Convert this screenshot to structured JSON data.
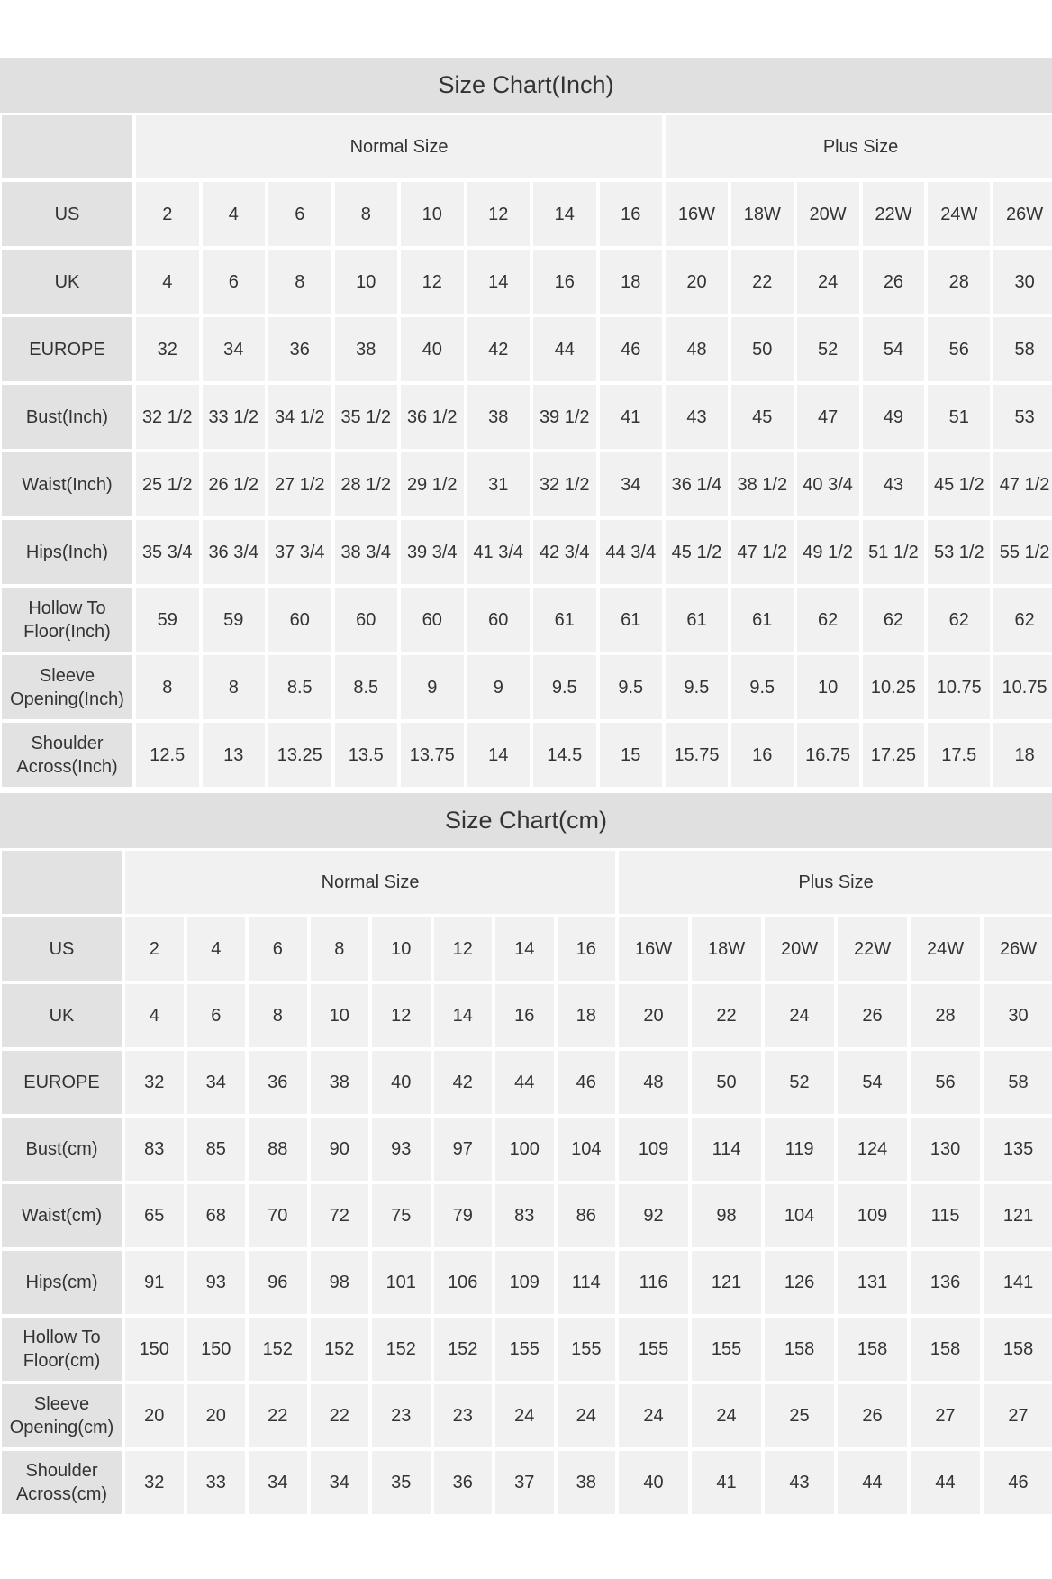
{
  "colors": {
    "title_bar": "#e0e0e0",
    "label_cell": "#e2e2e2",
    "value_cell": "#f1f1f1",
    "text": "#333333"
  },
  "charts": [
    {
      "title": "Size Chart(Inch)",
      "group_headers": [
        "Normal Size",
        "Plus Size"
      ],
      "rows": [
        {
          "label": "US",
          "values": [
            "2",
            "4",
            "6",
            "8",
            "10",
            "12",
            "14",
            "16",
            "16W",
            "18W",
            "20W",
            "22W",
            "24W",
            "26W"
          ]
        },
        {
          "label": "UK",
          "values": [
            "4",
            "6",
            "8",
            "10",
            "12",
            "14",
            "16",
            "18",
            "20",
            "22",
            "24",
            "26",
            "28",
            "30"
          ]
        },
        {
          "label": "EUROPE",
          "values": [
            "32",
            "34",
            "36",
            "38",
            "40",
            "42",
            "44",
            "46",
            "48",
            "50",
            "52",
            "54",
            "56",
            "58"
          ]
        },
        {
          "label": "Bust(Inch)",
          "values": [
            "32 1/2",
            "33 1/2",
            "34 1/2",
            "35 1/2",
            "36 1/2",
            "38",
            "39 1/2",
            "41",
            "43",
            "45",
            "47",
            "49",
            "51",
            "53"
          ]
        },
        {
          "label": "Waist(Inch)",
          "values": [
            "25 1/2",
            "26 1/2",
            "27 1/2",
            "28 1/2",
            "29 1/2",
            "31",
            "32 1/2",
            "34",
            "36 1/4",
            "38 1/2",
            "40 3/4",
            "43",
            "45 1/2",
            "47 1/2"
          ]
        },
        {
          "label": "Hips(Inch)",
          "values": [
            "35 3/4",
            "36 3/4",
            "37 3/4",
            "38 3/4",
            "39 3/4",
            "41 3/4",
            "42 3/4",
            "44 3/4",
            "45 1/2",
            "47 1/2",
            "49 1/2",
            "51 1/2",
            "53 1/2",
            "55 1/2"
          ]
        },
        {
          "label": "Hollow To Floor(Inch)",
          "values": [
            "59",
            "59",
            "60",
            "60",
            "60",
            "60",
            "61",
            "61",
            "61",
            "61",
            "62",
            "62",
            "62",
            "62"
          ]
        },
        {
          "label": "Sleeve Opening(Inch)",
          "values": [
            "8",
            "8",
            "8.5",
            "8.5",
            "9",
            "9",
            "9.5",
            "9.5",
            "9.5",
            "9.5",
            "10",
            "10.25",
            "10.75",
            "10.75"
          ]
        },
        {
          "label": "Shoulder Across(Inch)",
          "values": [
            "12.5",
            "13",
            "13.25",
            "13.5",
            "13.75",
            "14",
            "14.5",
            "15",
            "15.75",
            "16",
            "16.75",
            "17.25",
            "17.5",
            "18"
          ]
        }
      ]
    },
    {
      "title": "Size Chart(cm)",
      "group_headers": [
        "Normal Size",
        "Plus Size"
      ],
      "rows": [
        {
          "label": "US",
          "values": [
            "2",
            "4",
            "6",
            "8",
            "10",
            "12",
            "14",
            "16",
            "16W",
            "18W",
            "20W",
            "22W",
            "24W",
            "26W"
          ]
        },
        {
          "label": "UK",
          "values": [
            "4",
            "6",
            "8",
            "10",
            "12",
            "14",
            "16",
            "18",
            "20",
            "22",
            "24",
            "26",
            "28",
            "30"
          ]
        },
        {
          "label": "EUROPE",
          "values": [
            "32",
            "34",
            "36",
            "38",
            "40",
            "42",
            "44",
            "46",
            "48",
            "50",
            "52",
            "54",
            "56",
            "58"
          ]
        },
        {
          "label": "Bust(cm)",
          "values": [
            "83",
            "85",
            "88",
            "90",
            "93",
            "97",
            "100",
            "104",
            "109",
            "114",
            "119",
            "124",
            "130",
            "135"
          ]
        },
        {
          "label": "Waist(cm)",
          "values": [
            "65",
            "68",
            "70",
            "72",
            "75",
            "79",
            "83",
            "86",
            "92",
            "98",
            "104",
            "109",
            "115",
            "121"
          ]
        },
        {
          "label": "Hips(cm)",
          "values": [
            "91",
            "93",
            "96",
            "98",
            "101",
            "106",
            "109",
            "114",
            "116",
            "121",
            "126",
            "131",
            "136",
            "141"
          ]
        },
        {
          "label": "Hollow To Floor(cm)",
          "values": [
            "150",
            "150",
            "152",
            "152",
            "152",
            "152",
            "155",
            "155",
            "155",
            "155",
            "158",
            "158",
            "158",
            "158"
          ]
        },
        {
          "label": "Sleeve Opening(cm)",
          "values": [
            "20",
            "20",
            "22",
            "22",
            "23",
            "23",
            "24",
            "24",
            "24",
            "24",
            "25",
            "26",
            "27",
            "27"
          ]
        },
        {
          "label": "Shoulder Across(cm)",
          "values": [
            "32",
            "33",
            "34",
            "34",
            "35",
            "36",
            "37",
            "38",
            "40",
            "41",
            "43",
            "44",
            "44",
            "46"
          ]
        }
      ]
    }
  ]
}
